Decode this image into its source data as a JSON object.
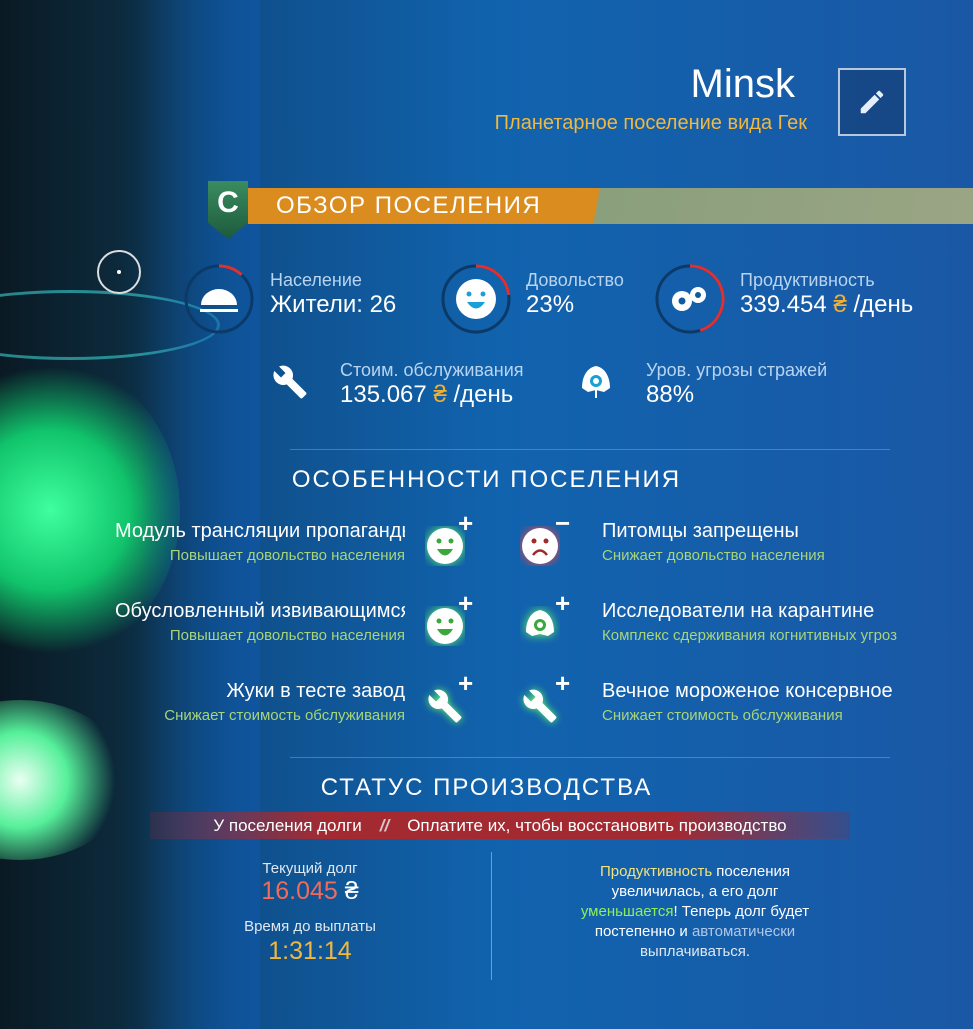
{
  "header": {
    "title": "Minsk",
    "subtitle": "Планетарное поселение вида Гек",
    "edit_icon": "pencil-icon"
  },
  "overview": {
    "badge_letter": "C",
    "title": "ОБЗОР ПОСЕЛЕНИЯ",
    "stats": [
      {
        "icon": "population-dome-icon",
        "label": "Население",
        "value": "Жители: 26",
        "ring_fraction": 0.12
      },
      {
        "icon": "smiley-icon",
        "label": "Довольство",
        "value": "23%",
        "ring_fraction": 0.23
      },
      {
        "icon": "gears-icon",
        "label": "Продуктивность",
        "value": "339.454",
        "unit": "/день",
        "ring_fraction": 0.45
      }
    ],
    "secondary": [
      {
        "icon": "wrench-icon",
        "label": "Стоим. обслуживания",
        "value": "135.067",
        "unit": "/день"
      },
      {
        "icon": "sentinel-icon",
        "label": "Уров. угрозы стражей",
        "value": "88%"
      }
    ],
    "currency_symbol": "₴"
  },
  "features": {
    "title": "ОСОБЕННОСТИ ПОСЕЛЕНИЯ",
    "left": [
      {
        "title": "Модуль трансляции пропаганды",
        "subtitle": "Повышает довольство населения",
        "icon": "happy-face-icon",
        "sign": "+"
      },
      {
        "title": "Обусловленный извивающимся",
        "subtitle": "Повышает довольство населения",
        "icon": "happy-face-icon",
        "sign": "+"
      },
      {
        "title": "Жуки в тесте завод",
        "subtitle": "Снижает стоимость обслуживания",
        "icon": "wrench-icon",
        "sign": "+"
      }
    ],
    "right": [
      {
        "title": "Питомцы запрещены",
        "subtitle": "Снижает довольство населения",
        "icon": "sad-face-icon",
        "sign": "−"
      },
      {
        "title": "Исследователи на карантине",
        "subtitle": "Комплекс сдерживания когнитивных угроз",
        "icon": "sentinel-icon",
        "sign": "+"
      },
      {
        "title": "Вечное мороженое консервное",
        "subtitle": "Снижает стоимость обслуживания",
        "icon": "wrench-icon",
        "sign": "+"
      }
    ]
  },
  "production": {
    "title": "СТАТУС ПРОИЗВОДСТВА",
    "banner_left": "У поселения долги",
    "banner_sep": "//",
    "banner_right": "Оплатите их, чтобы восстановить производство",
    "debt_label": "Текущий долг",
    "debt_value": "16.045",
    "time_label": "Время до выплаты",
    "time_value": "1:31:14",
    "msg": {
      "p1": "Продуктивность",
      "p2": " поселения увеличилась, а его долг ",
      "p3": "уменьшается",
      "p4": "! Теперь долг будет постепенно и ",
      "p5": "автоматически",
      "p6": " выплачиваться."
    }
  },
  "colors": {
    "accent": "#db8c1f",
    "gold": "#f0b840",
    "debt": "#f26a5a",
    "positive": "#a8d47a",
    "negative_ring": "#e03030"
  }
}
